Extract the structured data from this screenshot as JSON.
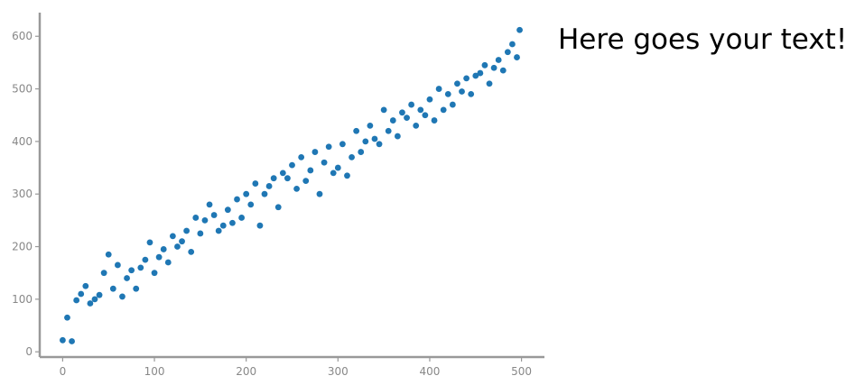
{
  "chart_data": {
    "type": "scatter",
    "title": "",
    "xlabel": "",
    "ylabel": "",
    "xlim": [
      -25,
      525
    ],
    "ylim": [
      -10,
      645
    ],
    "x_ticks": [
      0,
      100,
      200,
      300,
      400,
      500
    ],
    "y_ticks": [
      0,
      100,
      200,
      300,
      400,
      500,
      600
    ],
    "grid": false,
    "legend": "none",
    "annotation": "Here goes your text!",
    "series": [
      {
        "color": "#1f77b4",
        "x": [
          0,
          5,
          10,
          15,
          20,
          25,
          30,
          35,
          40,
          45,
          50,
          55,
          60,
          65,
          70,
          75,
          80,
          85,
          90,
          95,
          100,
          105,
          110,
          115,
          120,
          125,
          130,
          135,
          140,
          145,
          150,
          155,
          160,
          165,
          170,
          175,
          180,
          185,
          190,
          195,
          200,
          205,
          210,
          215,
          220,
          225,
          230,
          235,
          240,
          245,
          250,
          255,
          260,
          265,
          270,
          275,
          280,
          285,
          290,
          295,
          300,
          305,
          310,
          315,
          320,
          325,
          330,
          335,
          340,
          345,
          350,
          355,
          360,
          365,
          370,
          375,
          380,
          385,
          390,
          395,
          400,
          405,
          410,
          415,
          420,
          425,
          430,
          435,
          440,
          445,
          450,
          455,
          460,
          465,
          470,
          475,
          480,
          485,
          490,
          495,
          498
        ],
        "y": [
          22,
          65,
          20,
          98,
          110,
          125,
          92,
          100,
          108,
          150,
          185,
          120,
          165,
          105,
          140,
          155,
          120,
          160,
          175,
          208,
          150,
          180,
          195,
          170,
          220,
          200,
          210,
          230,
          190,
          255,
          225,
          250,
          280,
          260,
          230,
          240,
          270,
          245,
          290,
          255,
          300,
          280,
          320,
          240,
          300,
          315,
          330,
          275,
          340,
          330,
          355,
          310,
          370,
          325,
          345,
          380,
          300,
          360,
          390,
          340,
          350,
          395,
          335,
          370,
          420,
          380,
          400,
          430,
          405,
          395,
          460,
          420,
          440,
          410,
          455,
          445,
          470,
          430,
          460,
          450,
          480,
          440,
          500,
          460,
          490,
          470,
          510,
          495,
          520,
          490,
          525,
          530,
          545,
          510,
          540,
          555,
          535,
          570,
          585,
          560,
          612
        ]
      }
    ]
  }
}
